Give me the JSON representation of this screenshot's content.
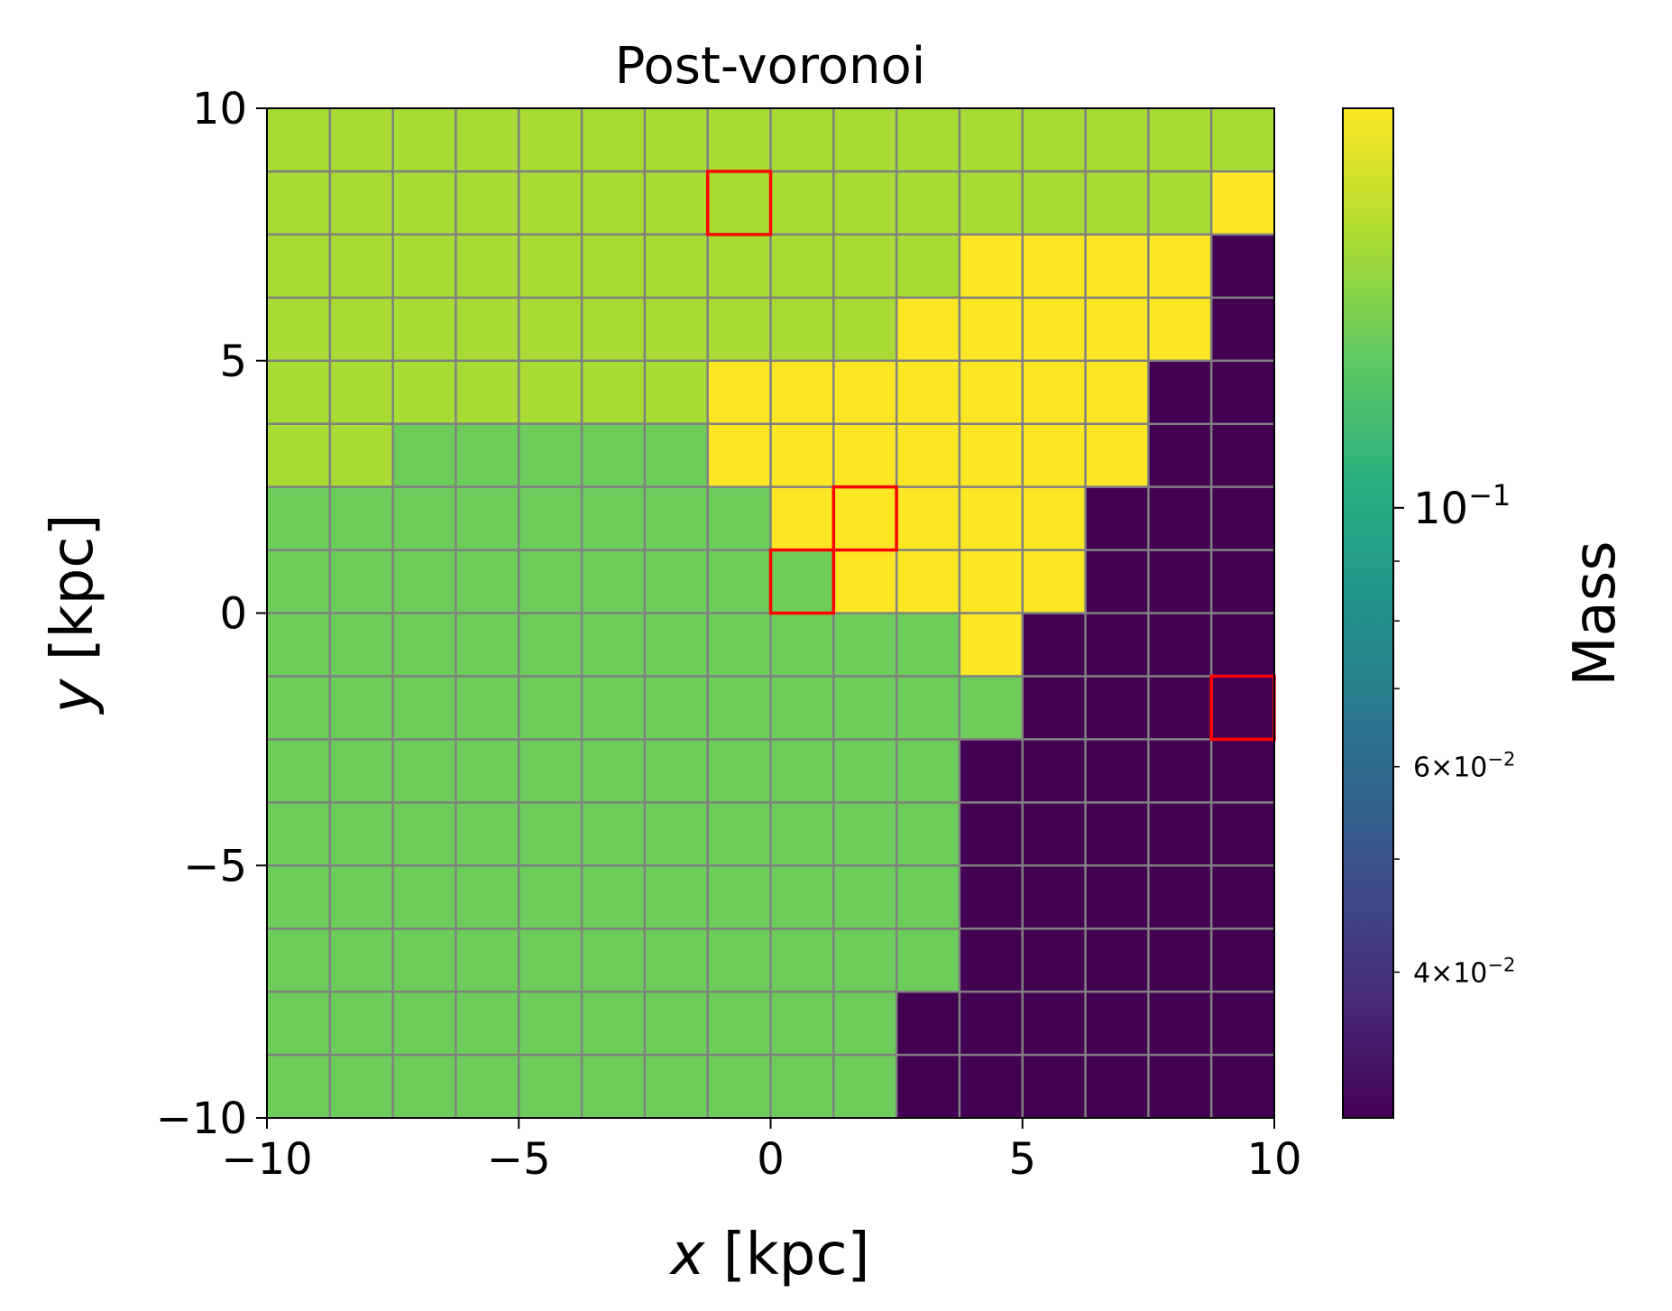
{
  "chart_data": {
    "type": "heatmap",
    "title": "Post-voronoi",
    "xlabel_var": "x",
    "xlabel_unit": "[kpc]",
    "ylabel_var": "y",
    "ylabel_unit": "[kpc]",
    "xlim": [
      -10,
      10
    ],
    "ylim": [
      -10,
      10
    ],
    "xticks": [
      -10,
      -5,
      0,
      5,
      10
    ],
    "yticks": [
      -10,
      -5,
      0,
      5,
      10
    ],
    "xtick_labels": [
      "−10",
      "−5",
      "0",
      "5",
      "10"
    ],
    "ytick_labels": [
      "−10",
      "−5",
      "0",
      "5",
      "10"
    ],
    "grid": true,
    "grid_color": "#808080",
    "n_cols": 16,
    "n_rows": 16,
    "cell_size_kpc": 1.25,
    "levels": [
      {
        "id": "A",
        "mass": 0.03,
        "color": "#440154"
      },
      {
        "id": "B",
        "mass": 0.16,
        "color": "#6ccd5a"
      },
      {
        "id": "C",
        "mass": 0.18,
        "color": "#a8db34"
      },
      {
        "id": "D",
        "mass": 0.22,
        "color": "#fde725"
      }
    ],
    "grid_rows_top_to_bottom": [
      "CCCCCCCCCCCCCCCC",
      "CCCCCCCCCCCCCCCD",
      "CCCCCCCCCCCDDDDA",
      "CCCCCCCCCCDDDDDA",
      "CCCCCCCDDDDDDDAA",
      "CCBBBBBDDDDDDDAA",
      "BBBBBBBBDDDDDAAA",
      "BBBBBBBBBDDDDAAA",
      "BBBBBBBBBBBDAAAA",
      "BBBBBBBBBBBBAAAA",
      "BBBBBBBBBBBAAAAA",
      "BBBBBBBBBBBAAAAA",
      "BBBBBBBBBBBAAAAA",
      "BBBBBBBBBBBAAAAA",
      "BBBBBBBBBBAAAAAA",
      "BBBBBBBBBBAAAAAA"
    ],
    "highlighted_cells": [
      {
        "x_min": -1.25,
        "x_max": 0,
        "y_min": 7.5,
        "y_max": 8.75
      },
      {
        "x_min": 1.25,
        "x_max": 2.5,
        "y_min": 1.25,
        "y_max": 2.5
      },
      {
        "x_min": 0,
        "x_max": 1.25,
        "y_min": 0,
        "y_max": 1.25
      },
      {
        "x_min": 8.75,
        "x_max": 10,
        "y_min": -2.5,
        "y_max": -1.25
      }
    ],
    "highlight_color": "#ff0000",
    "colorbar": {
      "label": "Mass",
      "scale": "log",
      "min": 0.03,
      "max": 0.22,
      "colormap": [
        "#440154",
        "#472d7b",
        "#3b528b",
        "#2c728e",
        "#21918c",
        "#28ae80",
        "#5ec962",
        "#addc30",
        "#fde725"
      ],
      "major_ticks": [
        {
          "value": 0.1,
          "label_base": "10",
          "label_exp": "−1"
        }
      ],
      "minor_ticks": [
        {
          "value": 0.04,
          "label": "4×10",
          "exp": "−2"
        },
        {
          "value": 0.05,
          "label": "",
          "exp": ""
        },
        {
          "value": 0.06,
          "label": "6×10",
          "exp": "−2"
        },
        {
          "value": 0.07,
          "label": "",
          "exp": ""
        },
        {
          "value": 0.08,
          "label": "",
          "exp": ""
        },
        {
          "value": 0.09,
          "label": "",
          "exp": ""
        }
      ]
    }
  }
}
